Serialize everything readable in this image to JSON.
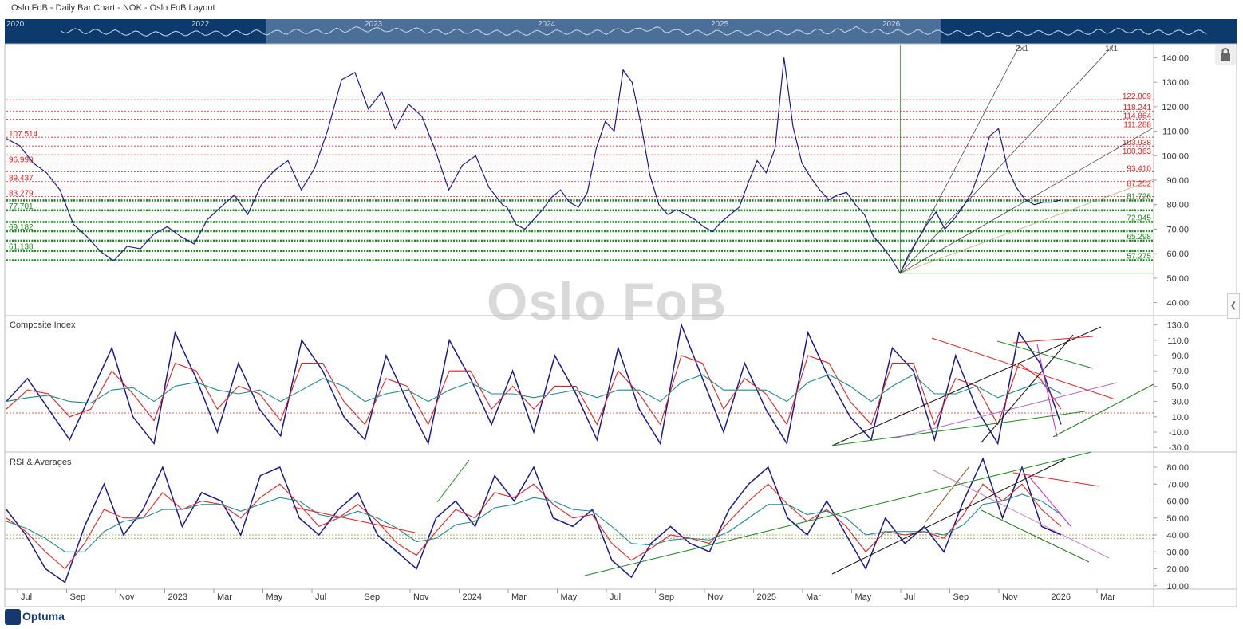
{
  "header": {
    "title": "Oslo FoB - Daily Bar Chart - NOK - Oslo FoB Layout"
  },
  "navigator": {
    "years": [
      "2020",
      "2022",
      "2023",
      "2024",
      "2025",
      "2026"
    ]
  },
  "watermark": "Oslo FoB",
  "logo": "Optuma",
  "icons": {
    "lock": "lock-icon",
    "side_arrow": "chevron-left-icon"
  },
  "colors": {
    "price": "#1a1a8c",
    "red": "#e0201f",
    "teal": "#1c8a8a",
    "green": "#1e8a1e",
    "navigator": "#0d3a6d"
  },
  "chart_data": [
    {
      "type": "line",
      "panel": "price",
      "title": "",
      "ylim": [
        35,
        145
      ],
      "yticks": [
        "140.00",
        "130.00",
        "120.00",
        "110.00",
        "100.00",
        "90.00",
        "80.00",
        "70.00",
        "60.00",
        "50.00",
        "40.00"
      ],
      "resistance_levels": [
        "122.809",
        "118.241",
        "114.864",
        "111.288",
        "107.514",
        "103.938",
        "100.363",
        "96.990",
        "93.410",
        "89.437",
        "87.252",
        "83.279"
      ],
      "support_levels": [
        "81.726",
        "77.701",
        "72.945",
        "69.182",
        "65.298",
        "61.138",
        "57.275"
      ],
      "gann_fan_labels": [
        "2x1",
        "1x1"
      ],
      "x": [
        0,
        3,
        6,
        9,
        12,
        15,
        18,
        21,
        24,
        27,
        30,
        33,
        36,
        39,
        42,
        45,
        48,
        51,
        54,
        57,
        60,
        63,
        66,
        69,
        72,
        75,
        78,
        81,
        84,
        87,
        90,
        93,
        96,
        99,
        102,
        105,
        108,
        111,
        112,
        114,
        116,
        118,
        120,
        122,
        124,
        126,
        128,
        130,
        132,
        134,
        136,
        138,
        140,
        142,
        144,
        146,
        148,
        150,
        152,
        154,
        156,
        158,
        160,
        162,
        164,
        166,
        168,
        170,
        172,
        174,
        176,
        178,
        180,
        182,
        184,
        186,
        188,
        190,
        192,
        194,
        196,
        198,
        200,
        202,
        204,
        206,
        208,
        210,
        212,
        214,
        216,
        218,
        220,
        222,
        224,
        226,
        228,
        230,
        232,
        234,
        236
      ],
      "values": [
        107,
        104,
        97,
        93,
        86,
        72,
        67,
        61,
        57,
        63,
        62,
        68,
        71,
        67,
        64,
        74,
        79,
        84,
        76,
        88,
        94,
        98,
        86,
        95,
        111,
        131,
        134,
        119,
        126,
        111,
        121,
        116,
        102,
        86,
        96,
        100,
        87,
        80,
        79,
        72,
        70,
        74,
        78,
        83,
        86,
        81,
        79,
        85,
        103,
        114,
        110,
        135,
        130,
        113,
        92,
        80,
        76,
        78,
        76,
        74,
        71,
        69,
        73,
        76,
        79,
        89,
        98,
        93,
        103,
        140,
        112,
        97,
        91,
        86,
        82,
        84,
        85,
        80,
        76,
        67,
        63,
        58,
        52,
        60,
        66,
        72,
        77,
        70,
        74,
        79,
        85,
        95,
        108,
        111,
        95,
        87,
        82,
        80,
        81,
        81,
        82
      ]
    },
    {
      "type": "line",
      "panel": "composite",
      "title": "Composite Index",
      "ylim": [
        -35,
        140
      ],
      "yticks": [
        "130.0",
        "110.0",
        "90.0",
        "70.0",
        "50.0",
        "30.0",
        "10.0",
        "-10.0",
        "-30.0"
      ],
      "series": [
        {
          "name": "",
          "values": [
            30,
            60,
            20,
            -20,
            40,
            100,
            10,
            -25,
            120,
            60,
            -10,
            80,
            20,
            -15,
            110,
            70,
            10,
            -20,
            90,
            30,
            -25,
            110,
            60,
            0,
            70,
            -10,
            90,
            40,
            -20,
            100,
            20,
            -25,
            130,
            60,
            -10,
            80,
            20,
            -25,
            120,
            60,
            10,
            -20,
            100,
            70,
            -20,
            90,
            20,
            -25,
            120,
            80,
            0
          ]
        },
        {
          "name": "",
          "values": [
            20,
            45,
            40,
            10,
            20,
            70,
            40,
            5,
            80,
            70,
            20,
            50,
            40,
            5,
            80,
            80,
            30,
            0,
            60,
            50,
            0,
            70,
            70,
            20,
            50,
            20,
            50,
            50,
            0,
            70,
            40,
            0,
            90,
            80,
            20,
            60,
            40,
            0,
            90,
            80,
            30,
            0,
            80,
            80,
            0,
            60,
            50,
            0,
            80,
            60,
            20
          ]
        },
        {
          "name": "",
          "values": [
            30,
            35,
            38,
            30,
            28,
            45,
            48,
            30,
            50,
            55,
            45,
            40,
            45,
            30,
            45,
            60,
            50,
            30,
            40,
            45,
            30,
            45,
            55,
            40,
            40,
            35,
            40,
            45,
            35,
            45,
            45,
            30,
            55,
            65,
            45,
            45,
            45,
            30,
            55,
            65,
            50,
            30,
            50,
            65,
            40,
            40,
            50,
            35,
            45,
            55,
            40
          ]
        }
      ]
    },
    {
      "type": "line",
      "panel": "rsi",
      "title": "RSI & Averages",
      "ylim": [
        8,
        88
      ],
      "yticks": [
        "80.00",
        "70.00",
        "60.00",
        "50.00",
        "40.00",
        "30.00",
        "20.00",
        "10.00"
      ],
      "series": [
        {
          "name": "",
          "values": [
            55,
            40,
            20,
            12,
            45,
            70,
            40,
            55,
            80,
            45,
            65,
            60,
            40,
            75,
            80,
            50,
            40,
            55,
            65,
            40,
            30,
            20,
            50,
            60,
            45,
            75,
            60,
            80,
            50,
            45,
            55,
            25,
            15,
            35,
            45,
            35,
            30,
            55,
            70,
            80,
            50,
            40,
            60,
            40,
            20,
            50,
            35,
            45,
            30,
            60,
            85,
            50,
            80,
            45,
            40
          ]
        },
        {
          "name": "",
          "values": [
            50,
            42,
            30,
            20,
            35,
            55,
            50,
            50,
            65,
            55,
            60,
            58,
            50,
            62,
            70,
            58,
            45,
            50,
            58,
            48,
            35,
            28,
            42,
            55,
            50,
            65,
            62,
            70,
            58,
            50,
            52,
            35,
            25,
            32,
            40,
            38,
            35,
            48,
            60,
            70,
            58,
            48,
            55,
            45,
            30,
            42,
            40,
            42,
            38,
            52,
            70,
            60,
            70,
            55,
            45
          ]
        },
        {
          "name": "",
          "values": [
            48,
            44,
            38,
            30,
            30,
            42,
            48,
            50,
            55,
            55,
            58,
            58,
            54,
            58,
            62,
            60,
            52,
            50,
            54,
            50,
            44,
            36,
            38,
            46,
            48,
            56,
            58,
            62,
            60,
            55,
            54,
            45,
            35,
            34,
            37,
            38,
            37,
            42,
            50,
            58,
            58,
            52,
            54,
            50,
            40,
            42,
            42,
            42,
            40,
            46,
            58,
            60,
            64,
            60,
            52
          ]
        }
      ]
    }
  ],
  "xaxis": {
    "labels": [
      "Jul",
      "Sep",
      "Nov",
      "2023",
      "Mar",
      "May",
      "Jul",
      "Sep",
      "Nov",
      "2024",
      "Mar",
      "May",
      "Jul",
      "Sep",
      "Nov",
      "2025",
      "Mar",
      "May",
      "Jul",
      "Sep",
      "Nov",
      "2026",
      "Mar"
    ]
  }
}
